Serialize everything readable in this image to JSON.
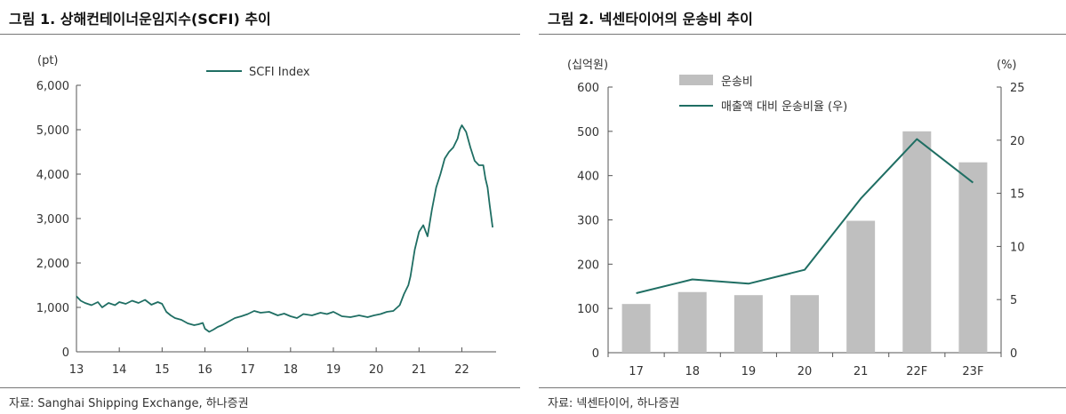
{
  "left": {
    "title": "그림 1. 상해컨테이너운임지수(SCFI) 추이",
    "source": "자료: Sanghai Shipping Exchange, 하나증권"
  },
  "right": {
    "title": "그림 2. 넥센타이어의 운송비 추이",
    "source": "자료: 넥센타이어, 하나증권"
  },
  "colors": {
    "line": "#1f6e63",
    "bar": "#bfbfbf",
    "axis": "#555555",
    "rule": "#777777"
  },
  "chart_data": [
    {
      "type": "line",
      "unit_label": "(pt)",
      "legend_position": "top-center",
      "grid": false,
      "xlim": [
        13,
        22.8
      ],
      "ylim": [
        0,
        6000
      ],
      "x_ticks": [
        13,
        14,
        15,
        16,
        17,
        18,
        19,
        20,
        21,
        22
      ],
      "y_ticks": [
        0,
        1000,
        2000,
        3000,
        4000,
        5000,
        6000
      ],
      "y_tick_labels": [
        "0",
        "1,000",
        "2,000",
        "3,000",
        "4,000",
        "5,000",
        "6,000"
      ],
      "series": [
        {
          "name": "SCFI Index",
          "x": [
            13.0,
            13.1,
            13.2,
            13.35,
            13.5,
            13.6,
            13.75,
            13.9,
            14.0,
            14.15,
            14.3,
            14.45,
            14.6,
            14.75,
            14.9,
            15.0,
            15.1,
            15.2,
            15.3,
            15.45,
            15.6,
            15.75,
            15.85,
            15.95,
            16.0,
            16.1,
            16.2,
            16.3,
            16.4,
            16.55,
            16.7,
            16.85,
            17.0,
            17.15,
            17.3,
            17.5,
            17.7,
            17.85,
            18.0,
            18.15,
            18.3,
            18.5,
            18.7,
            18.85,
            19.0,
            19.2,
            19.4,
            19.6,
            19.8,
            19.95,
            20.1,
            20.25,
            20.4,
            20.55,
            20.65,
            20.75,
            20.8,
            20.85,
            20.9,
            21.0,
            21.1,
            21.2,
            21.3,
            21.4,
            21.5,
            21.6,
            21.7,
            21.8,
            21.9,
            21.95,
            22.0,
            22.1,
            22.2,
            22.3,
            22.4,
            22.5,
            22.55,
            22.6,
            22.65,
            22.72
          ],
          "values": [
            1250,
            1150,
            1100,
            1050,
            1120,
            1000,
            1100,
            1050,
            1120,
            1080,
            1150,
            1100,
            1170,
            1060,
            1120,
            1080,
            900,
            820,
            760,
            720,
            640,
            600,
            620,
            650,
            520,
            450,
            500,
            560,
            600,
            680,
            760,
            800,
            850,
            920,
            880,
            900,
            820,
            860,
            800,
            760,
            850,
            820,
            880,
            850,
            900,
            800,
            780,
            820,
            780,
            820,
            850,
            900,
            920,
            1050,
            1300,
            1500,
            1700,
            2000,
            2300,
            2700,
            2850,
            2600,
            3200,
            3700,
            4000,
            4350,
            4500,
            4600,
            4800,
            5000,
            5100,
            4950,
            4600,
            4300,
            4200,
            4200,
            3900,
            3700,
            3300,
            2800
          ]
        }
      ]
    },
    {
      "type": "bar",
      "categories": [
        "17",
        "18",
        "19",
        "20",
        "21",
        "22F",
        "23F"
      ],
      "left_unit_label": "(십억원)",
      "right_unit_label": "(%)",
      "legend_position": "top-center",
      "grid": false,
      "ylim": [
        0,
        600
      ],
      "y_ticks": [
        0,
        100,
        200,
        300,
        400,
        500,
        600
      ],
      "y2lim": [
        0,
        25
      ],
      "y2_ticks": [
        0,
        5,
        10,
        15,
        20,
        25
      ],
      "series": [
        {
          "name": "운송비",
          "type": "bar",
          "axis": "left",
          "values": [
            110,
            137,
            130,
            130,
            298,
            500,
            430
          ]
        },
        {
          "name": "매출액 대비 운송비율 (우)",
          "type": "line",
          "axis": "right",
          "values": [
            5.6,
            6.9,
            6.5,
            7.8,
            14.5,
            20.1,
            16.0
          ]
        }
      ]
    }
  ]
}
